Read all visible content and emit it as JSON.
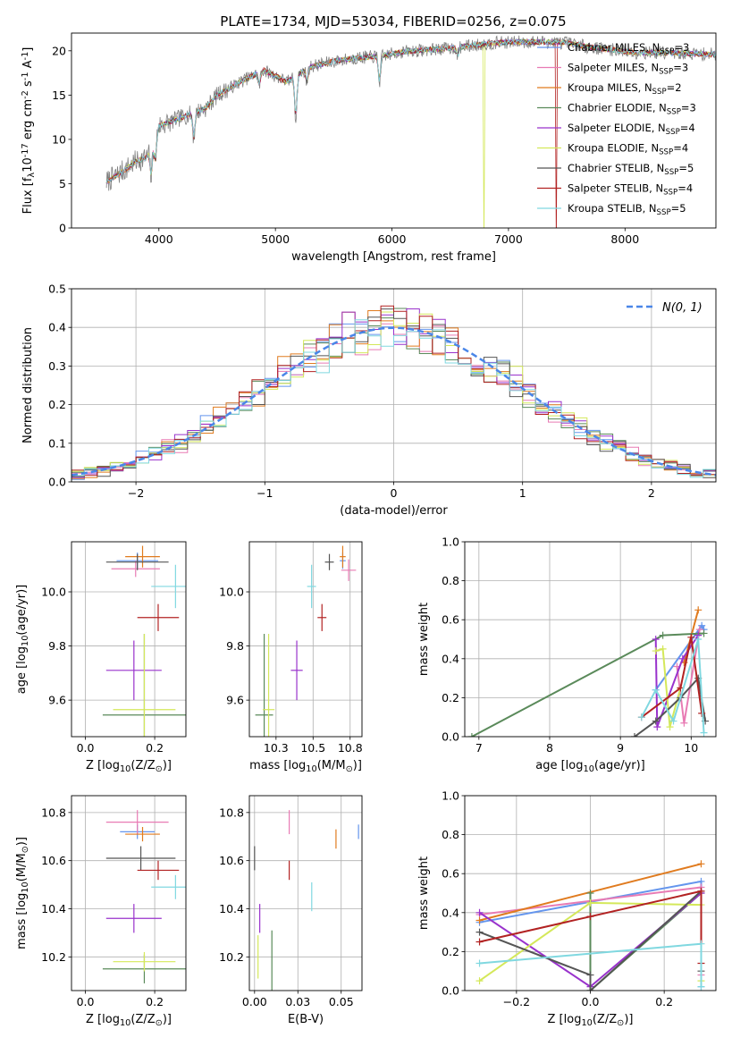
{
  "figure": {
    "title": "PLATE=1734, MJD=53034, FIBERID=0256, z=0.075"
  },
  "fits": [
    {
      "label": "Chabrier MILES, N$_{SSP}$=3",
      "color": "#6495ed"
    },
    {
      "label": "Salpeter MILES, N$_{SSP}$=3",
      "color": "#e87bb4"
    },
    {
      "label": "Kroupa MILES, N$_{SSP}$=2",
      "color": "#e07b1f"
    },
    {
      "label": "Chabrier ELODIE, N$_{SSP}$=3",
      "color": "#5a8a5a"
    },
    {
      "label": "Salpeter ELODIE, N$_{SSP}$=4",
      "color": "#9932cc"
    },
    {
      "label": "Kroupa ELODIE, N$_{SSP}$=4",
      "color": "#d4e85a"
    },
    {
      "label": "Chabrier STELIB, N$_{SSP}$=5",
      "color": "#555555"
    },
    {
      "label": "Salpeter STELIB, N$_{SSP}$=4",
      "color": "#b22222"
    },
    {
      "label": "Kroupa STELIB, N$_{SSP}$=5",
      "color": "#80d8e0"
    }
  ],
  "chart_data": [
    {
      "id": "spectrum",
      "type": "line",
      "title": "PLATE=1734, MJD=53034, FIBERID=0256, z=0.075",
      "xlabel": "wavelength [Angstrom, rest frame]",
      "ylabel": "Flux [f$_\\lambda$10$^{-17}$ erg cm$^{-2}$ s$^{-1}$ A$^{-1}$]",
      "xlim": [
        3250,
        8780
      ],
      "ylim": [
        0,
        22
      ],
      "xticks": [
        4000,
        5000,
        6000,
        7000,
        8000
      ],
      "yticks": [
        0,
        5,
        10,
        15,
        20
      ],
      "grid": false,
      "legend": "upper right",
      "continuum": {
        "x": [
          3550,
          3700,
          3800,
          3900,
          4000,
          4100,
          4200,
          4300,
          4400,
          4500,
          4700,
          4900,
          5100,
          5300,
          5500,
          5700,
          5900,
          6100,
          6300,
          6500,
          6700,
          6900,
          7100,
          7300,
          7500,
          7700,
          7900,
          8100,
          8300,
          8500,
          8780
        ],
        "y": [
          5.2,
          6.5,
          7.5,
          8.0,
          11.5,
          12.0,
          12.5,
          13.0,
          13.5,
          15.0,
          16.5,
          17.8,
          16.5,
          18.2,
          18.8,
          19.2,
          19.4,
          19.9,
          20.1,
          20.3,
          20.6,
          20.9,
          21.0,
          21.0,
          20.9,
          20.4,
          20.1,
          19.8,
          19.8,
          19.7,
          19.6
        ]
      },
      "features": [
        {
          "x": 3934,
          "depth": 3.5
        },
        {
          "x": 3969,
          "depth": 3.0
        },
        {
          "x": 4300,
          "depth": 3.0
        },
        {
          "x": 4861,
          "depth": 1.5
        },
        {
          "x": 5175,
          "depth": 5.0
        },
        {
          "x": 5270,
          "depth": 1.5
        },
        {
          "x": 5893,
          "depth": 3.0
        },
        {
          "x": 6563,
          "depth": 1.0
        }
      ],
      "model_dropouts": [
        {
          "series": "Kroupa ELODIE, N$_{SSP}$=4",
          "x": 6790
        },
        {
          "series": "Salpeter STELIB, N$_{SSP}$=4",
          "x": 7410
        }
      ]
    },
    {
      "id": "residuals",
      "type": "histogram",
      "xlabel": "(data-model)/error",
      "ylabel": "Normed distribution",
      "xlim": [
        -2.5,
        2.5
      ],
      "ylim": [
        0,
        0.5
      ],
      "xticks": [
        -2,
        -1,
        0,
        1,
        2
      ],
      "yticks": [
        0.0,
        0.1,
        0.2,
        0.3,
        0.4,
        0.5
      ],
      "grid": true,
      "legend": "upper right",
      "reference_label": "$\\mathcal{N}(0, 1)$",
      "reference_color": "#4a86e8",
      "bin_width": 0.1
    },
    {
      "id": "Z-age",
      "type": "errorbar",
      "xlabel": "Z [log$_{10}$($Z/Z_\\odot$)]",
      "ylabel": "age  [log$_{10}$($age/yr$)]",
      "xlim": [
        -0.04,
        0.29
      ],
      "ylim": [
        9.465,
        10.185
      ],
      "xticks": [
        0.0,
        0.2
      ],
      "yticks": [
        9.6,
        9.8,
        10.0
      ],
      "grid": true,
      "points": [
        {
          "x": 0.15,
          "y": 10.115,
          "xerr": 0.06,
          "yerr": 0.03
        },
        {
          "x": 0.145,
          "y": 10.085,
          "xerr": 0.07,
          "yerr": 0.03
        },
        {
          "x": 0.165,
          "y": 10.13,
          "xerr": 0.05,
          "yerr": 0.04
        },
        {
          "x": 0.17,
          "y": 9.545,
          "xerr": 0.12,
          "yerr": 0.3
        },
        {
          "x": 0.14,
          "y": 9.71,
          "xerr": 0.08,
          "yerr": 0.11
        },
        {
          "x": 0.17,
          "y": 9.565,
          "xerr": 0.09,
          "yerr": 0.28
        },
        {
          "x": 0.15,
          "y": 10.11,
          "xerr": 0.09,
          "yerr": 0.03
        },
        {
          "x": 0.21,
          "y": 9.905,
          "xerr": 0.06,
          "yerr": 0.05
        },
        {
          "x": 0.26,
          "y": 10.02,
          "xerr": 0.07,
          "yerr": 0.08
        }
      ]
    },
    {
      "id": "mass-age",
      "type": "errorbar",
      "xlabel": "mass [log$_{10}$($M/M_\\odot$)]",
      "ylabel": "",
      "xlim": [
        10.07,
        10.83
      ],
      "ylim": [
        9.465,
        10.185
      ],
      "xticks": [
        10.25,
        10.5,
        10.75
      ],
      "yticks": [
        9.6,
        9.8,
        10.0
      ],
      "grid": true,
      "points": [
        {
          "x": 10.7,
          "y": 10.115,
          "xerr": 0.02,
          "yerr": 0.03
        },
        {
          "x": 10.74,
          "y": 10.08,
          "xerr": 0.05,
          "yerr": 0.04
        },
        {
          "x": 10.7,
          "y": 10.13,
          "xerr": 0.02,
          "yerr": 0.04
        },
        {
          "x": 10.17,
          "y": 9.545,
          "xerr": 0.06,
          "yerr": 0.3
        },
        {
          "x": 10.39,
          "y": 9.71,
          "xerr": 0.04,
          "yerr": 0.11
        },
        {
          "x": 10.2,
          "y": 9.565,
          "xerr": 0.04,
          "yerr": 0.28
        },
        {
          "x": 10.61,
          "y": 10.11,
          "xerr": 0.03,
          "yerr": 0.03
        },
        {
          "x": 10.56,
          "y": 9.905,
          "xerr": 0.03,
          "yerr": 0.05
        },
        {
          "x": 10.49,
          "y": 10.02,
          "xerr": 0.03,
          "yerr": 0.08
        }
      ]
    },
    {
      "id": "age-weight",
      "type": "line",
      "xlabel": "age  [log$_{10}$($age/yr$)]",
      "ylabel": "mass weight",
      "xlim": [
        6.8,
        10.35
      ],
      "ylim": [
        0,
        1.0
      ],
      "xticks": [
        7,
        8,
        9,
        10
      ],
      "yticks": [
        0.0,
        0.2,
        0.4,
        0.6,
        0.8,
        1.0
      ],
      "grid": true,
      "series": [
        {
          "x": [
            9.5,
            10.15,
            10.18
          ],
          "y": [
            0.24,
            0.57,
            0.55
          ]
        },
        {
          "x": [
            9.8,
            9.9,
            10.12
          ],
          "y": [
            0.36,
            0.07,
            0.55
          ]
        },
        {
          "x": [
            9.9,
            10.1
          ],
          "y": [
            0.38,
            0.65
          ]
        },
        {
          "x": [
            6.9,
            9.6,
            10.18
          ],
          "y": [
            0.0,
            0.52,
            0.53
          ]
        },
        {
          "x": [
            9.5,
            9.52,
            9.88,
            10.1
          ],
          "y": [
            0.5,
            0.05,
            0.4,
            0.52
          ]
        },
        {
          "x": [
            9.5,
            9.6,
            9.7,
            9.85
          ],
          "y": [
            0.44,
            0.45,
            0.05,
            0.25
          ]
        },
        {
          "x": [
            9.2,
            9.5,
            9.85,
            10.1,
            10.2
          ],
          "y": [
            0.0,
            0.08,
            0.2,
            0.3,
            0.08
          ]
        },
        {
          "x": [
            9.3,
            9.85,
            10.0,
            10.15
          ],
          "y": [
            0.1,
            0.25,
            0.51,
            0.12
          ]
        },
        {
          "x": [
            9.3,
            9.5,
            9.75,
            10.1,
            10.18
          ],
          "y": [
            0.1,
            0.24,
            0.08,
            0.5,
            0.02
          ]
        }
      ]
    },
    {
      "id": "Z-mass",
      "type": "errorbar",
      "xlabel": "Z [log$_{10}$($Z/Z_\\odot$)]",
      "ylabel": "mass [log$_{10}$($M/M_\\odot$)]",
      "xlim": [
        -0.04,
        0.29
      ],
      "ylim": [
        10.06,
        10.87
      ],
      "xticks": [
        0.0,
        0.2
      ],
      "yticks": [
        10.2,
        10.4,
        10.6,
        10.8
      ],
      "grid": true,
      "points": [
        {
          "x": 0.15,
          "y": 10.72,
          "xerr": 0.05,
          "yerr": 0.03
        },
        {
          "x": 0.15,
          "y": 10.76,
          "xerr": 0.09,
          "yerr": 0.05
        },
        {
          "x": 0.165,
          "y": 10.71,
          "xerr": 0.05,
          "yerr": 0.03
        },
        {
          "x": 0.17,
          "y": 10.15,
          "xerr": 0.12,
          "yerr": 0.06
        },
        {
          "x": 0.14,
          "y": 10.36,
          "xerr": 0.08,
          "yerr": 0.06
        },
        {
          "x": 0.17,
          "y": 10.18,
          "xerr": 0.09,
          "yerr": 0.04
        },
        {
          "x": 0.16,
          "y": 10.61,
          "xerr": 0.1,
          "yerr": 0.05
        },
        {
          "x": 0.21,
          "y": 10.56,
          "xerr": 0.06,
          "yerr": 0.04
        },
        {
          "x": 0.26,
          "y": 10.49,
          "xerr": 0.07,
          "yerr": 0.05
        }
      ]
    },
    {
      "id": "EBV-mass",
      "type": "errorbar",
      "xlabel": "E(B-V)",
      "ylabel": "",
      "xlim": [
        -0.003,
        0.062
      ],
      "ylim": [
        10.06,
        10.87
      ],
      "xticks": [
        0.0,
        0.025,
        0.05
      ],
      "yticks": [
        10.2,
        10.4,
        10.6,
        10.8
      ],
      "grid": true,
      "points": [
        {
          "x": 0.06,
          "y": 10.72,
          "xerr": 0,
          "yerr": 0.03
        },
        {
          "x": 0.02,
          "y": 10.76,
          "xerr": 0,
          "yerr": 0.05
        },
        {
          "x": 0.047,
          "y": 10.69,
          "xerr": 0,
          "yerr": 0.04
        },
        {
          "x": 0.01,
          "y": 10.15,
          "xerr": 0,
          "yerr": 0.16
        },
        {
          "x": 0.003,
          "y": 10.36,
          "xerr": 0,
          "yerr": 0.06
        },
        {
          "x": 0.002,
          "y": 10.2,
          "xerr": 0,
          "yerr": 0.09
        },
        {
          "x": 0.0,
          "y": 10.61,
          "xerr": 0,
          "yerr": 0.05
        },
        {
          "x": 0.02,
          "y": 10.56,
          "xerr": 0,
          "yerr": 0.04
        },
        {
          "x": 0.033,
          "y": 10.45,
          "xerr": 0,
          "yerr": 0.06
        }
      ]
    },
    {
      "id": "Z-weight",
      "type": "line",
      "xlabel": "Z [log$_{10}$($Z/Z_\\odot$)]",
      "ylabel": "mass weight",
      "xlim": [
        -0.34,
        0.34
      ],
      "ylim": [
        0,
        1.0
      ],
      "xticks": [
        -0.2,
        0.0,
        0.2
      ],
      "yticks": [
        0.0,
        0.2,
        0.4,
        0.6,
        0.8,
        1.0
      ],
      "grid": true,
      "series": [
        {
          "x": [
            -0.3,
            0.3,
            0.3
          ],
          "y": [
            0.35,
            0.56,
            0.02
          ]
        },
        {
          "x": [
            -0.3,
            0.3,
            0.3
          ],
          "y": [
            0.39,
            0.53,
            0.08
          ]
        },
        {
          "x": [
            -0.3,
            0.3
          ],
          "y": [
            0.36,
            0.65
          ]
        },
        {
          "x": [
            0.0,
            0.0,
            0.3
          ],
          "y": [
            0.5,
            0.0,
            0.5
          ]
        },
        {
          "x": [
            -0.3,
            0.0,
            0.3
          ],
          "y": [
            0.4,
            0.02,
            0.5
          ]
        },
        {
          "x": [
            -0.3,
            0.0,
            0.3,
            0.3
          ],
          "y": [
            0.05,
            0.45,
            0.44,
            0.05
          ]
        },
        {
          "x": [
            -0.3,
            0.0,
            0.0,
            0.3,
            0.3
          ],
          "y": [
            0.3,
            0.08,
            0.0,
            0.51,
            0.1
          ]
        },
        {
          "x": [
            -0.3,
            0.0,
            0.3,
            0.3
          ],
          "y": [
            0.25,
            0.38,
            0.51,
            0.14
          ]
        },
        {
          "x": [
            -0.3,
            0.3,
            0.3
          ],
          "y": [
            0.14,
            0.24,
            0.02
          ]
        }
      ]
    }
  ]
}
